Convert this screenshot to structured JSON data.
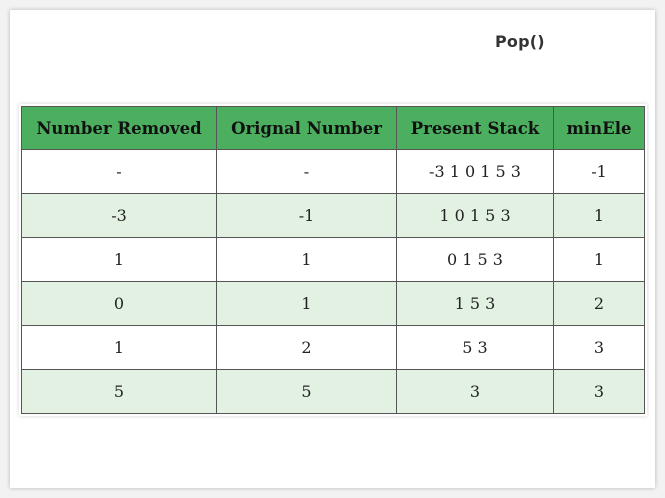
{
  "title": "Pop()",
  "table": {
    "headers": [
      "Number Removed",
      "Orignal Number",
      "Present Stack",
      "minEle"
    ],
    "rows": [
      [
        "-",
        "-",
        "-3 1 0 1 5 3",
        "-1"
      ],
      [
        "-3",
        "-1",
        "1 0 1 5 3",
        "1"
      ],
      [
        "1",
        "1",
        "0 1 5 3",
        "1"
      ],
      [
        "0",
        "1",
        "1 5 3",
        "2"
      ],
      [
        "1",
        "2",
        "5 3",
        "3"
      ],
      [
        "5",
        "5",
        "3",
        "3"
      ]
    ]
  },
  "colors": {
    "header_bg": "#4caf60",
    "row_even_bg": "#e2f1e2",
    "row_odd_bg": "#ffffff",
    "border": "#555555"
  }
}
